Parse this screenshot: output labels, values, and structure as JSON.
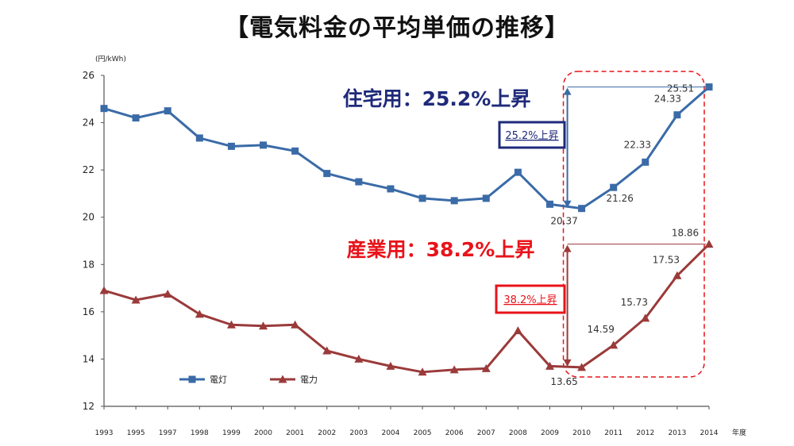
{
  "title": "【電気料金の平均単価の推移】",
  "chart_data": {
    "type": "line",
    "yaxis_label": "(円/kWh)",
    "xaxis_unit": "年度",
    "ylim": [
      12,
      26
    ],
    "yticks": [
      12,
      14,
      16,
      18,
      20,
      22,
      24,
      26
    ],
    "x": [
      "1993",
      "1995",
      "1997",
      "1998",
      "1999",
      "2000",
      "2001",
      "2002",
      "2003",
      "2004",
      "2005",
      "2006",
      "2007",
      "2008",
      "2009",
      "2010",
      "2011",
      "2012",
      "2013",
      "2014"
    ],
    "series": [
      {
        "name": "電灯",
        "color": "#3a6ba7",
        "marker": "square",
        "values": [
          24.6,
          24.2,
          24.5,
          23.35,
          23.0,
          23.05,
          22.8,
          21.85,
          21.5,
          21.2,
          20.8,
          20.7,
          20.8,
          21.9,
          20.55,
          20.37,
          21.26,
          22.33,
          24.33,
          25.51
        ]
      },
      {
        "name": "電力",
        "color": "#9b3a3a",
        "marker": "triangle",
        "values": [
          16.9,
          16.5,
          16.75,
          15.9,
          15.45,
          15.4,
          15.45,
          14.35,
          14.0,
          13.7,
          13.45,
          13.55,
          13.6,
          15.2,
          13.7,
          13.65,
          14.59,
          15.73,
          17.53,
          18.86
        ]
      }
    ],
    "data_labels": [
      {
        "series": 0,
        "index": 15,
        "text": "20.37"
      },
      {
        "series": 0,
        "index": 16,
        "text": "21.26"
      },
      {
        "series": 0,
        "index": 17,
        "text": "22.33"
      },
      {
        "series": 0,
        "index": 18,
        "text": "24.33"
      },
      {
        "series": 0,
        "index": 19,
        "text": "25.51"
      },
      {
        "series": 1,
        "index": 15,
        "text": "13.65"
      },
      {
        "series": 1,
        "index": 16,
        "text": "14.59"
      },
      {
        "series": 1,
        "index": 17,
        "text": "15.73"
      },
      {
        "series": 1,
        "index": 18,
        "text": "17.53"
      },
      {
        "series": 1,
        "index": 19,
        "text": "18.86"
      }
    ],
    "annotations": {
      "residential_headline": "住宅用：25.2%上昇",
      "residential_box": "25.2%上昇",
      "industrial_headline": "産業用：38.2%上昇",
      "industrial_box": "38.2%上昇"
    },
    "grid": false,
    "legend_position": "bottom-left"
  }
}
